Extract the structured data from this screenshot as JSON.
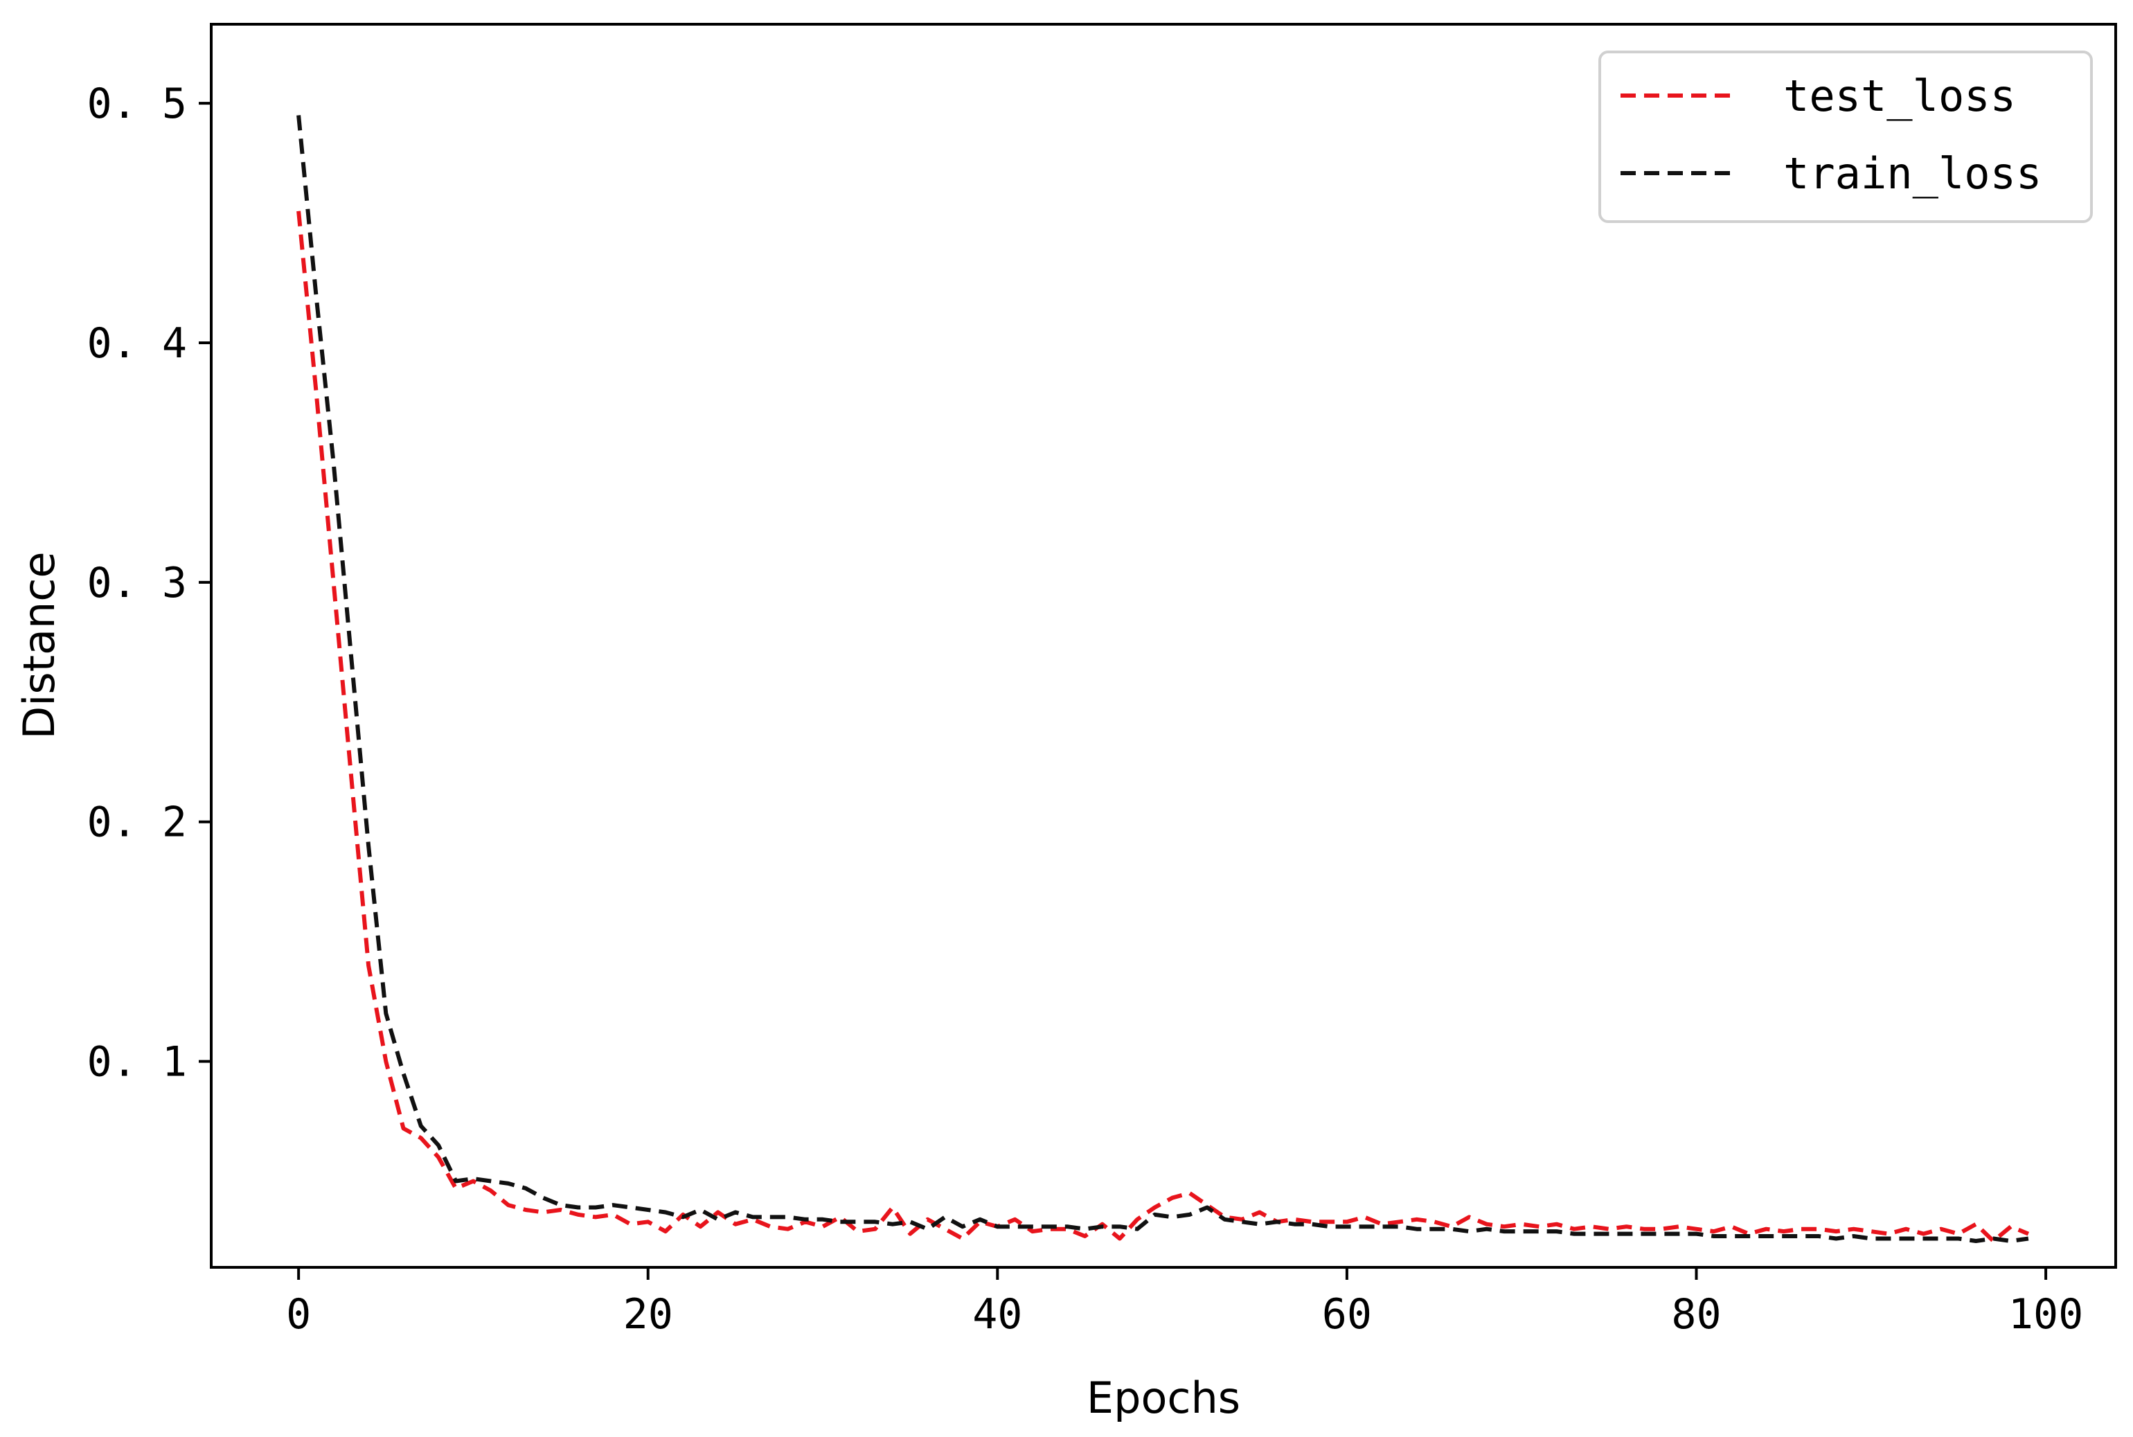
{
  "chart_data": {
    "type": "line",
    "title": "",
    "xlabel": "Epochs",
    "ylabel": "Distance",
    "xlim": [
      -5,
      104
    ],
    "ylim": [
      0.014,
      0.533
    ],
    "xticks": [
      0,
      20,
      40,
      60,
      80,
      100
    ],
    "xtick_labels": [
      "0",
      "20",
      "40",
      "60",
      "80",
      "100"
    ],
    "yticks": [
      0.1,
      0.2,
      0.3,
      0.4,
      0.5
    ],
    "ytick_labels": [
      "0. 1",
      "0. 2",
      "0. 3",
      "0. 4",
      "0. 5"
    ],
    "grid": false,
    "legend_position": "top-right",
    "x": [
      0,
      1,
      2,
      3,
      4,
      5,
      6,
      7,
      8,
      9,
      10,
      11,
      12,
      13,
      14,
      15,
      16,
      17,
      18,
      19,
      20,
      21,
      22,
      23,
      24,
      25,
      26,
      27,
      28,
      29,
      30,
      31,
      32,
      33,
      34,
      35,
      36,
      37,
      38,
      39,
      40,
      41,
      42,
      43,
      44,
      45,
      46,
      47,
      48,
      49,
      50,
      51,
      52,
      53,
      54,
      55,
      56,
      57,
      58,
      59,
      60,
      61,
      62,
      63,
      64,
      65,
      66,
      67,
      68,
      69,
      70,
      71,
      72,
      73,
      74,
      75,
      76,
      77,
      78,
      79,
      80,
      81,
      82,
      83,
      84,
      85,
      86,
      87,
      88,
      89,
      90,
      91,
      92,
      93,
      94,
      95,
      96,
      97,
      98,
      99
    ],
    "series": [
      {
        "name": "test_loss",
        "color": "#e8141c",
        "dash": "dashed",
        "values": [
          0.455,
          0.38,
          0.3,
          0.22,
          0.14,
          0.1,
          0.072,
          0.068,
          0.06,
          0.047,
          0.05,
          0.046,
          0.04,
          0.038,
          0.037,
          0.038,
          0.036,
          0.035,
          0.036,
          0.032,
          0.033,
          0.029,
          0.036,
          0.031,
          0.037,
          0.032,
          0.034,
          0.031,
          0.03,
          0.033,
          0.031,
          0.035,
          0.029,
          0.03,
          0.039,
          0.028,
          0.034,
          0.03,
          0.026,
          0.033,
          0.031,
          0.034,
          0.029,
          0.03,
          0.03,
          0.027,
          0.032,
          0.026,
          0.034,
          0.039,
          0.043,
          0.045,
          0.04,
          0.035,
          0.034,
          0.037,
          0.033,
          0.034,
          0.033,
          0.033,
          0.033,
          0.035,
          0.032,
          0.033,
          0.034,
          0.033,
          0.031,
          0.035,
          0.032,
          0.031,
          0.032,
          0.031,
          0.032,
          0.03,
          0.031,
          0.03,
          0.031,
          0.03,
          0.03,
          0.031,
          0.03,
          0.029,
          0.031,
          0.028,
          0.03,
          0.029,
          0.03,
          0.03,
          0.029,
          0.03,
          0.029,
          0.028,
          0.03,
          0.028,
          0.03,
          0.028,
          0.032,
          0.025,
          0.031,
          0.028
        ]
      },
      {
        "name": "train_loss",
        "color": "#111111",
        "dash": "dashed",
        "values": [
          0.495,
          0.42,
          0.35,
          0.27,
          0.19,
          0.12,
          0.095,
          0.073,
          0.065,
          0.05,
          0.051,
          0.05,
          0.049,
          0.047,
          0.043,
          0.04,
          0.039,
          0.039,
          0.04,
          0.039,
          0.038,
          0.037,
          0.035,
          0.038,
          0.034,
          0.037,
          0.035,
          0.035,
          0.035,
          0.034,
          0.034,
          0.033,
          0.033,
          0.033,
          0.032,
          0.033,
          0.03,
          0.035,
          0.031,
          0.034,
          0.031,
          0.031,
          0.031,
          0.031,
          0.031,
          0.03,
          0.031,
          0.031,
          0.03,
          0.036,
          0.035,
          0.036,
          0.039,
          0.034,
          0.033,
          0.032,
          0.033,
          0.032,
          0.032,
          0.031,
          0.031,
          0.031,
          0.031,
          0.031,
          0.03,
          0.03,
          0.03,
          0.029,
          0.03,
          0.029,
          0.029,
          0.029,
          0.029,
          0.028,
          0.028,
          0.028,
          0.028,
          0.028,
          0.028,
          0.028,
          0.028,
          0.027,
          0.027,
          0.027,
          0.027,
          0.027,
          0.027,
          0.027,
          0.026,
          0.027,
          0.026,
          0.026,
          0.026,
          0.026,
          0.026,
          0.026,
          0.025,
          0.026,
          0.025,
          0.026
        ]
      }
    ]
  }
}
